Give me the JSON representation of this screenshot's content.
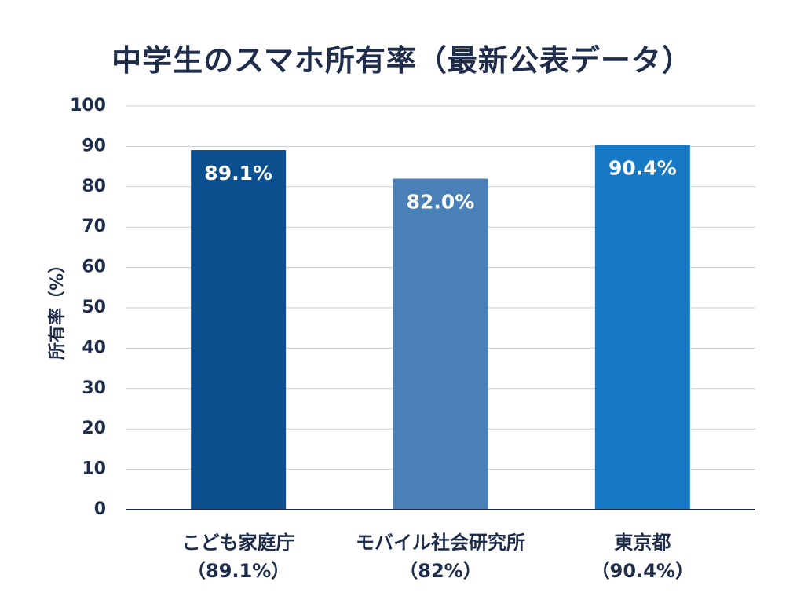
{
  "chart_data": {
    "type": "bar",
    "title": "中学生のスマホ所有率（最新公表データ）",
    "ylabel": "所有率（%）",
    "xlabel": "",
    "ylim": [
      0,
      100
    ],
    "yticks": [
      0,
      10,
      20,
      30,
      40,
      50,
      60,
      70,
      80,
      90,
      100
    ],
    "grid": true,
    "categories": [
      {
        "name": "こども家庭庁",
        "sub": "（89.1%）"
      },
      {
        "name": "モバイル社会研究所",
        "sub": "（82%）"
      },
      {
        "name": "東京都",
        "sub": "（90.4%）"
      }
    ],
    "values": [
      89.1,
      82.0,
      90.4
    ],
    "data_labels": [
      "89.1%",
      "82.0%",
      "90.4%"
    ],
    "colors": [
      "#0b4f8e",
      "#4a80b8",
      "#1679c6"
    ]
  }
}
